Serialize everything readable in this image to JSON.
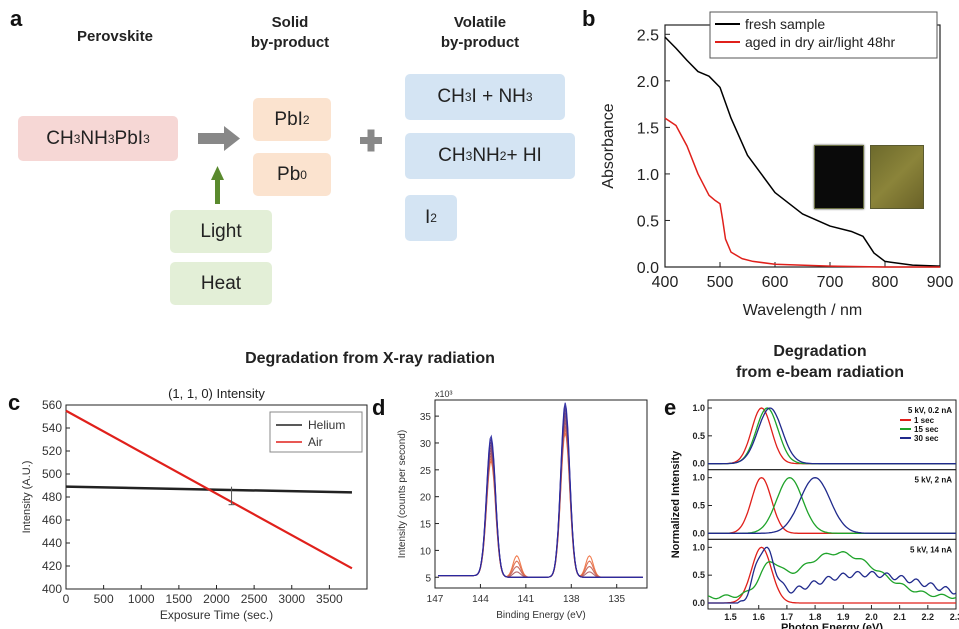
{
  "panel_a": {
    "label": "a",
    "headers": {
      "perovskite": "Perovskite",
      "solid": "Solid\nby-product",
      "volatile": "Volatile\nby-product"
    },
    "boxes": {
      "perovskite_html": "CH<sub>3</sub>NH<sub>3</sub>PbI<sub>3</sub>",
      "pbi2_html": "PbI<sub>2</sub>",
      "pb0_html": "Pb<sup>0</sup>",
      "light": "Light",
      "heat": "Heat",
      "v1_html": "CH<sub>3</sub>I + NH<sub>3</sub>",
      "v2_html": "CH<sub>3</sub>NH<sub>2</sub> + HI",
      "v3_html": "I<sub>2</sub>"
    },
    "colors": {
      "arrow": "#888888",
      "up_arrow": "#5a8a2e"
    }
  },
  "section_titles": {
    "xray": "Degradation from X-ray radiation",
    "ebeam": "Degradation\nfrom e-beam radiation"
  },
  "panel_labels": {
    "b": "b",
    "c": "c",
    "d": "d",
    "e": "e"
  },
  "chart_data": [
    {
      "id": "b",
      "type": "line",
      "xlabel": "Wavelength / nm",
      "ylabel": "Absorbance",
      "xlim": [
        400,
        900
      ],
      "ylim": [
        0,
        2.6
      ],
      "xticks": [
        400,
        500,
        600,
        700,
        800,
        900
      ],
      "yticks": [
        0.0,
        0.5,
        1.0,
        1.5,
        2.0,
        2.5
      ],
      "legend_position": "top-right",
      "series": [
        {
          "name": "fresh sample",
          "color": "#000000",
          "x": [
            400,
            420,
            440,
            460,
            480,
            500,
            520,
            550,
            600,
            650,
            700,
            740,
            760,
            780,
            800,
            850,
            900
          ],
          "y": [
            2.47,
            2.35,
            2.22,
            2.1,
            2.05,
            1.93,
            1.6,
            1.2,
            0.8,
            0.57,
            0.44,
            0.38,
            0.33,
            0.15,
            0.06,
            0.02,
            0.01
          ]
        },
        {
          "name": "aged in dry air/light 48hr",
          "color": "#e0201b",
          "x": [
            400,
            420,
            440,
            460,
            480,
            490,
            500,
            505,
            510,
            520,
            540,
            560,
            600,
            700,
            800,
            900
          ],
          "y": [
            1.6,
            1.52,
            1.3,
            1.0,
            0.77,
            0.72,
            0.68,
            0.5,
            0.3,
            0.16,
            0.09,
            0.06,
            0.03,
            0.01,
            0.0,
            0.0
          ]
        }
      ]
    },
    {
      "id": "c",
      "type": "line",
      "title": "(1, 1, 0) Intensity",
      "xlabel": "Exposure Time (sec.)",
      "ylabel": "Intensity (A.U.)",
      "xlim": [
        0,
        4000
      ],
      "ylim": [
        400,
        560
      ],
      "xticks": [
        0,
        500,
        1000,
        1500,
        2000,
        2500,
        3000,
        3500
      ],
      "yticks": [
        400,
        420,
        440,
        460,
        480,
        500,
        520,
        540,
        560
      ],
      "legend_position": "top-right",
      "series": [
        {
          "name": "Helium",
          "color": "#222222",
          "x": [
            0,
            3800
          ],
          "y": [
            489,
            484
          ]
        },
        {
          "name": "Air",
          "color": "#e0201b",
          "x": [
            0,
            3800
          ],
          "y": [
            555,
            418
          ]
        }
      ]
    },
    {
      "id": "d",
      "type": "line",
      "xlabel": "Binding Energy (eV)",
      "ylabel": "Intensity (counts per second)",
      "y_multiplier": "x10³",
      "xlim": [
        147,
        133
      ],
      "ylim": [
        3,
        38
      ],
      "xticks": [
        147,
        144,
        141,
        138,
        135
      ],
      "yticks": [
        5,
        10,
        15,
        20,
        25,
        30,
        35
      ],
      "peaks_eV": [
        143.3,
        138.4
      ],
      "peak_heights": [
        31,
        37.5
      ],
      "side_peaks_eV": [
        141.6,
        136.8
      ],
      "side_peak_heights": [
        9,
        9
      ]
    },
    {
      "id": "e",
      "type": "line",
      "xlabel": "Photon Energy (eV)",
      "ylabel": "Normalized Intensity",
      "xlim": [
        1.42,
        2.3
      ],
      "xticks": [
        1.5,
        1.6,
        1.7,
        1.8,
        1.9,
        2.0,
        2.1,
        2.2,
        2.3
      ],
      "yticks": [
        0.0,
        0.5,
        1.0
      ],
      "legend_position": "top-right",
      "series_names": [
        "1 sec",
        "15 sec",
        "30 sec"
      ],
      "series_colors": [
        "#e0201b",
        "#1fa32a",
        "#202a8c"
      ],
      "subpanels": [
        {
          "condition": "5 kV, 0.2 nA",
          "peaks": [
            1.61,
            1.63,
            1.64
          ],
          "widths": [
            0.05,
            0.055,
            0.06
          ]
        },
        {
          "condition": "5 kV, 2 nA",
          "peaks": [
            1.61,
            1.71,
            1.8
          ],
          "widths": [
            0.05,
            0.065,
            0.075
          ]
        },
        {
          "condition": "5 kV, 14 nA",
          "peaks": [
            1.61,
            1.9,
            1.62
          ],
          "widths": [
            0.05,
            0.18,
            0.05
          ]
        }
      ]
    }
  ]
}
